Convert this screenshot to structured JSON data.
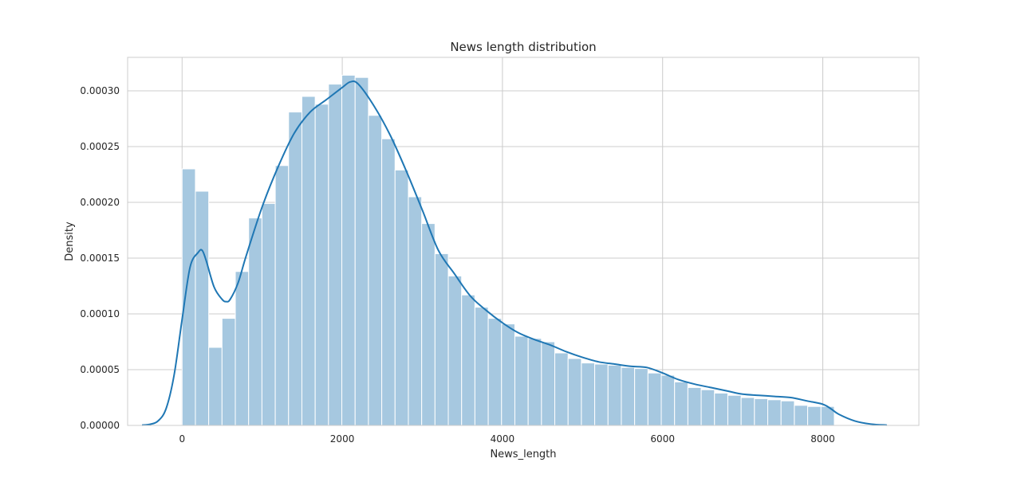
{
  "chart_data": {
    "type": "bar",
    "title": "News length distribution",
    "xlabel": "News_length",
    "ylabel": "Density",
    "xlim": [
      -680,
      9200
    ],
    "ylim": [
      0,
      0.00033
    ],
    "grid": true,
    "x_ticks": [
      0,
      2000,
      4000,
      6000,
      8000
    ],
    "x_tick_labels": [
      "0",
      "2000",
      "4000",
      "6000",
      "8000"
    ],
    "y_ticks": [
      0,
      5e-05,
      0.0001,
      0.00015,
      0.0002,
      0.00025,
      0.0003
    ],
    "y_tick_labels": [
      "0.00000",
      "0.00005",
      "0.00010",
      "0.00015",
      "0.00020",
      "0.00025",
      "0.00030"
    ],
    "colors": {
      "bars": "#a6c8e0",
      "bar_edge": "#ffffff",
      "kde_line": "#1f77b4",
      "grid": "#cccccc",
      "frame": "#cccccc"
    },
    "series": [
      {
        "kind": "histogram",
        "bin_start": 0,
        "bin_width": 166.2,
        "values": [
          0.00023,
          0.00021,
          7e-05,
          9.6e-05,
          0.000138,
          0.000186,
          0.000199,
          0.000233,
          0.000281,
          0.000295,
          0.000288,
          0.000306,
          0.000314,
          0.000312,
          0.000278,
          0.000257,
          0.000229,
          0.000205,
          0.000181,
          0.000154,
          0.000134,
          0.000117,
          0.000106,
          9.6e-05,
          9.1e-05,
          8e-05,
          7.8e-05,
          7.5e-05,
          6.5e-05,
          6e-05,
          5.6e-05,
          5.5e-05,
          5.4e-05,
          5.2e-05,
          5.1e-05,
          4.7e-05,
          4.5e-05,
          3.9e-05,
          3.4e-05,
          3.2e-05,
          2.9e-05,
          2.7e-05,
          2.5e-05,
          2.4e-05,
          2.3e-05,
          2.2e-05,
          1.8e-05,
          1.7e-05,
          1.7e-05
        ]
      },
      {
        "kind": "kde",
        "x": [
          -500,
          -400,
          -300,
          -200,
          -100,
          0,
          100,
          200,
          250,
          300,
          400,
          500,
          550,
          600,
          700,
          800,
          1000,
          1200,
          1400,
          1600,
          1800,
          2000,
          2100,
          2200,
          2400,
          2600,
          2800,
          3000,
          3200,
          3400,
          3600,
          3800,
          4000,
          4200,
          4400,
          4600,
          4800,
          5000,
          5200,
          5400,
          5600,
          5800,
          6000,
          6200,
          6400,
          6600,
          6800,
          7000,
          7200,
          7400,
          7600,
          7800,
          8000,
          8100,
          8200,
          8400,
          8600,
          8800
        ],
        "y": [
          3e-07,
          1e-06,
          4e-06,
          1.5e-05,
          4.5e-05,
          9.5e-05,
          0.000142,
          0.000155,
          0.000157,
          0.000148,
          0.000124,
          0.000113,
          0.000111,
          0.000113,
          0.000128,
          0.000152,
          0.000196,
          0.000232,
          0.000262,
          0.000281,
          0.000292,
          0.000303,
          0.000308,
          0.000306,
          0.000286,
          0.00026,
          0.000228,
          0.000193,
          0.000157,
          0.000136,
          0.000116,
          0.000103,
          9.2e-05,
          8.3e-05,
          7.7e-05,
          7.2e-05,
          6.6e-05,
          6.1e-05,
          5.7e-05,
          5.5e-05,
          5.3e-05,
          5.2e-05,
          4.7e-05,
          4.1e-05,
          3.7e-05,
          3.4e-05,
          3.1e-05,
          2.8e-05,
          2.7e-05,
          2.6e-05,
          2.5e-05,
          2.2e-05,
          1.9e-05,
          1.5e-05,
          1e-05,
          4e-06,
          1.2e-06,
          3e-07
        ]
      }
    ]
  }
}
